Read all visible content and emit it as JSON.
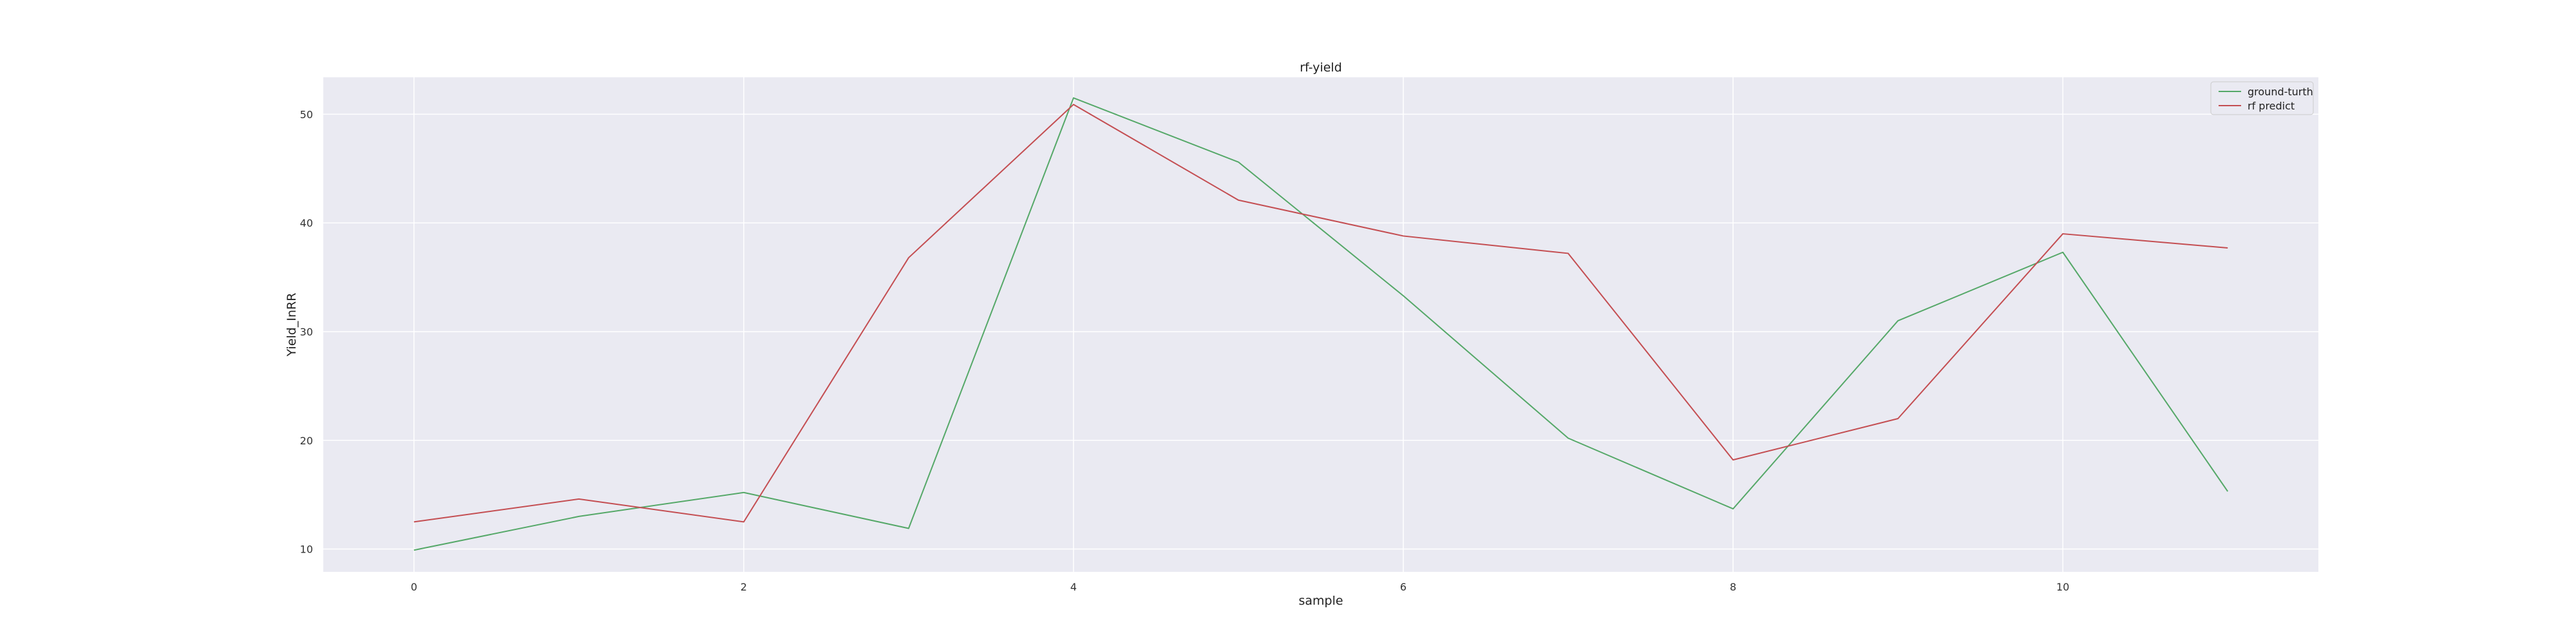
{
  "chart_data": {
    "type": "line",
    "title": "rf-yield",
    "xlabel": "sample",
    "ylabel": "Yield_InRR",
    "x": [
      0,
      1,
      2,
      3,
      4,
      5,
      6,
      7,
      8,
      9,
      10,
      11
    ],
    "xlim": [
      -0.55,
      11.55
    ],
    "ylim": [
      7.9,
      53.4
    ],
    "xticks": [
      0,
      2,
      4,
      6,
      8,
      10
    ],
    "yticks": [
      10,
      20,
      30,
      40,
      50
    ],
    "grid": true,
    "legend_position": "top-right",
    "background_color": "#eaeaf2",
    "series": [
      {
        "name": "ground-turth",
        "color": "#55a868",
        "values": [
          9.9,
          13.0,
          15.2,
          11.9,
          51.5,
          45.6,
          33.3,
          20.2,
          13.7,
          31.0,
          37.3,
          15.3
        ]
      },
      {
        "name": "rf predict",
        "color": "#c44e52",
        "values": [
          12.5,
          14.6,
          12.5,
          36.8,
          50.9,
          42.1,
          38.8,
          37.2,
          18.2,
          22.0,
          39.0,
          37.7
        ]
      }
    ]
  }
}
